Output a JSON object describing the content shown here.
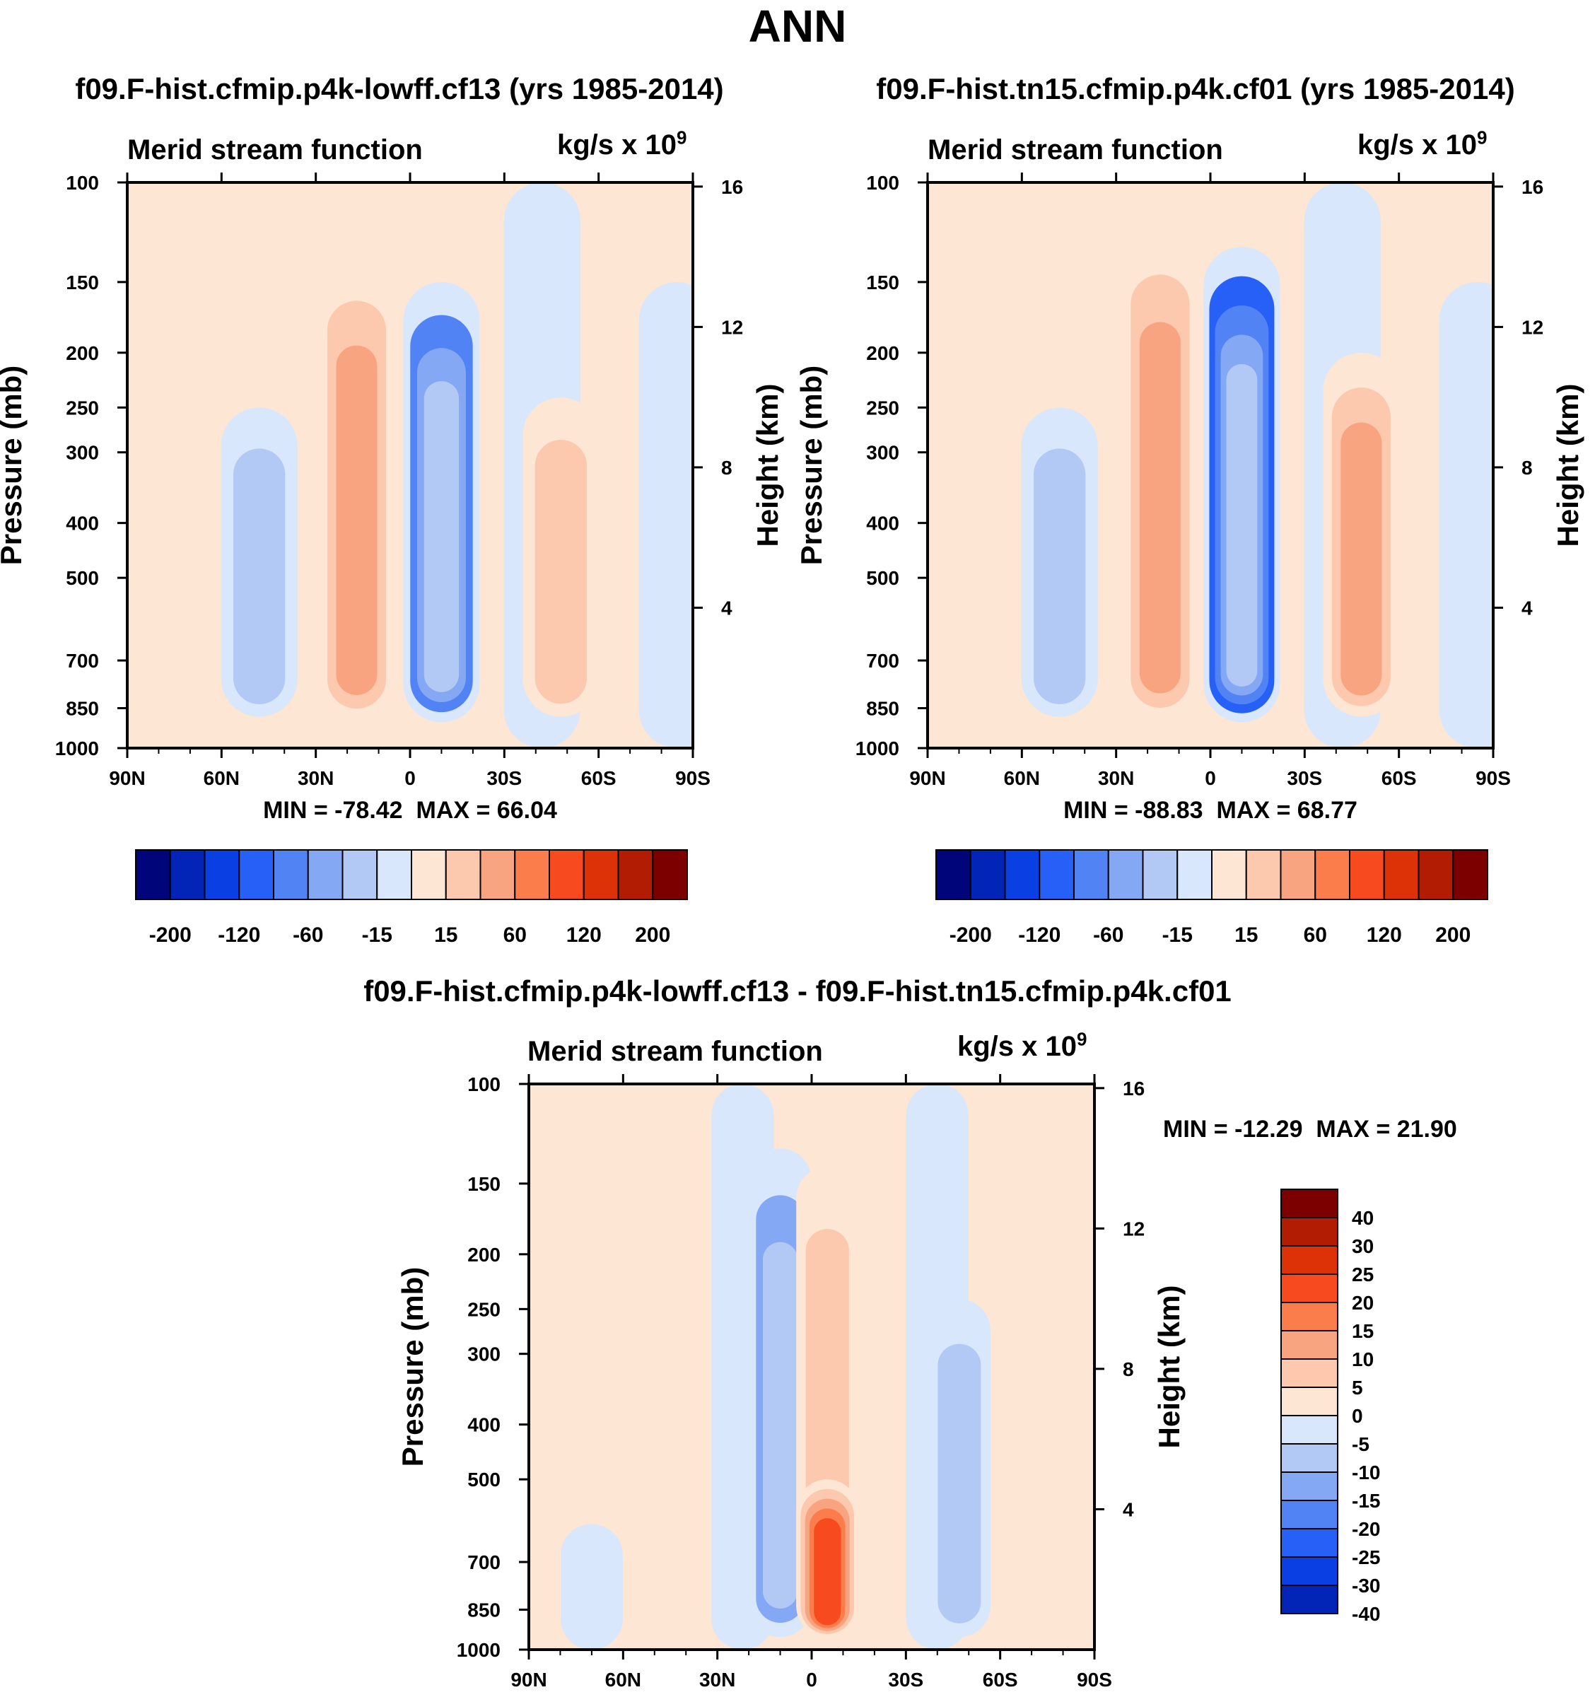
{
  "main_title": "ANN",
  "panels": [
    {
      "title": "f09.F-hist.cfmip.p4k-lowff.cf13 (yrs 1985-2014)",
      "subtitle": "Merid stream function",
      "units": "kg/s x 10",
      "units_exp": "9",
      "min_label": "MIN = -78.42",
      "max_label": "MAX =  66.04"
    },
    {
      "title": "f09.F-hist.tn15.cfmip.p4k.cf01 (yrs 1985-2014)",
      "subtitle": "Merid stream function",
      "units": "kg/s x 10",
      "units_exp": "9",
      "min_label": "MIN = -88.83",
      "max_label": "MAX =  68.77"
    },
    {
      "title": "f09.F-hist.cfmip.p4k-lowff.cf13 - f09.F-hist.tn15.cfmip.p4k.cf01",
      "subtitle": "Merid stream function",
      "units": "kg/s x 10",
      "units_exp": "9",
      "min_label": "MIN = -12.29",
      "max_label": "MAX =  21.90"
    }
  ],
  "chart_data": [
    {
      "type": "heatmap",
      "title": "f09.F-hist.cfmip.p4k-lowff.cf13 (yrs 1985-2014)",
      "ylabel": "Pressure (mb)",
      "ylabel_right": "Height (km)",
      "x_ticks": [
        "90N",
        "60N",
        "30N",
        "0",
        "30S",
        "60S",
        "90S"
      ],
      "x_values": [
        90,
        60,
        30,
        0,
        -30,
        -60,
        -90
      ],
      "y_ticks": [
        100,
        150,
        200,
        250,
        300,
        400,
        500,
        700,
        850,
        1000
      ],
      "y_scale": "log",
      "ylim": [
        1000,
        100
      ],
      "right_ticks_km": [
        4,
        8,
        12,
        16
      ],
      "min": -78.42,
      "max": 66.04,
      "features": [
        {
          "lat": 82,
          "p_top": 100,
          "p_bottom": 1000,
          "value": 0
        },
        {
          "lat": 48,
          "p_top": 250,
          "p_bottom": 880,
          "value": -20
        },
        {
          "lat": -42,
          "p_top": 100,
          "p_bottom": 1000,
          "value": -5
        },
        {
          "lat": 17,
          "p_top": 135,
          "p_bottom": 900,
          "value": 45
        },
        {
          "lat": -10,
          "p_top": 150,
          "p_bottom": 900,
          "value": -70
        },
        {
          "lat": -48,
          "p_top": 240,
          "p_bottom": 880,
          "value": 30
        },
        {
          "lat": -85,
          "p_top": 150,
          "p_bottom": 1000,
          "value": -3
        }
      ]
    },
    {
      "type": "heatmap",
      "title": "f09.F-hist.tn15.cfmip.p4k.cf01 (yrs 1985-2014)",
      "ylabel": "Pressure (mb)",
      "ylabel_right": "Height (km)",
      "x_ticks": [
        "90N",
        "60N",
        "30N",
        "0",
        "30S",
        "60S",
        "90S"
      ],
      "x_values": [
        90,
        60,
        30,
        0,
        -30,
        -60,
        -90
      ],
      "y_ticks": [
        100,
        150,
        200,
        250,
        300,
        400,
        500,
        700,
        850,
        1000
      ],
      "y_scale": "log",
      "ylim": [
        1000,
        100
      ],
      "right_ticks_km": [
        4,
        8,
        12,
        16
      ],
      "min": -88.83,
      "max": 68.77,
      "features": [
        {
          "lat": 82,
          "p_top": 100,
          "p_bottom": 1000,
          "value": 0
        },
        {
          "lat": 48,
          "p_top": 250,
          "p_bottom": 880,
          "value": -20
        },
        {
          "lat": -42,
          "p_top": 100,
          "p_bottom": 1000,
          "value": -5
        },
        {
          "lat": 16,
          "p_top": 120,
          "p_bottom": 900,
          "value": 48
        },
        {
          "lat": -10,
          "p_top": 130,
          "p_bottom": 900,
          "value": -80
        },
        {
          "lat": -48,
          "p_top": 200,
          "p_bottom": 880,
          "value": 40
        },
        {
          "lat": -85,
          "p_top": 150,
          "p_bottom": 1000,
          "value": -3
        }
      ]
    },
    {
      "type": "heatmap",
      "title": "f09.F-hist.cfmip.p4k-lowff.cf13 - f09.F-hist.tn15.cfmip.p4k.cf01",
      "ylabel": "Pressure (mb)",
      "ylabel_right": "Height (km)",
      "x_ticks": [
        "90N",
        "60N",
        "30N",
        "0",
        "30S",
        "60S",
        "90S"
      ],
      "x_values": [
        90,
        60,
        30,
        0,
        -30,
        -60,
        -90
      ],
      "y_ticks": [
        100,
        150,
        200,
        250,
        300,
        400,
        500,
        700,
        850,
        1000
      ],
      "y_scale": "log",
      "ylim": [
        1000,
        100
      ],
      "right_ticks_km": [
        4,
        8,
        12,
        16
      ],
      "min": -12.29,
      "max": 21.9,
      "features": [
        {
          "lat": 22,
          "p_top": 100,
          "p_bottom": 1000,
          "value": -3
        },
        {
          "lat": -40,
          "p_top": 100,
          "p_bottom": 1000,
          "value": -3
        },
        {
          "lat": 70,
          "p_top": 600,
          "p_bottom": 1000,
          "value": -2
        },
        {
          "lat": 10,
          "p_top": 130,
          "p_bottom": 950,
          "value": -10
        },
        {
          "lat": -5,
          "p_top": 140,
          "p_bottom": 950,
          "value": 8
        },
        {
          "lat": -5,
          "p_top": 500,
          "p_bottom": 950,
          "value": 20
        },
        {
          "lat": -47,
          "p_top": 240,
          "p_bottom": 950,
          "value": -8
        }
      ]
    }
  ],
  "colorbars": [
    {
      "orientation": "horizontal",
      "levels": [
        -200,
        -160,
        -120,
        -80,
        -60,
        -40,
        -15,
        0,
        15,
        40,
        60,
        80,
        120,
        160,
        200
      ],
      "tick_labels": [
        "-200",
        "-120",
        "-60",
        "-15",
        "15",
        "60",
        "120",
        "200"
      ]
    },
    {
      "orientation": "horizontal",
      "levels": [
        -200,
        -160,
        -120,
        -80,
        -60,
        -40,
        -15,
        0,
        15,
        40,
        60,
        80,
        120,
        160,
        200
      ],
      "tick_labels": [
        "-200",
        "-120",
        "-60",
        "-15",
        "15",
        "60",
        "120",
        "200"
      ]
    },
    {
      "orientation": "vertical",
      "levels": [
        40,
        30,
        25,
        20,
        15,
        10,
        5,
        0,
        -5,
        -10,
        -15,
        -20,
        -25,
        -30,
        -40
      ],
      "tick_labels": [
        "40",
        "30",
        "25",
        "20",
        "15",
        "10",
        "5",
        "0",
        "-5",
        "-10",
        "-15",
        "-20",
        "-25",
        "-30",
        "-40"
      ]
    }
  ],
  "palette": [
    "#00057a",
    "#0224b7",
    "#0a3fe4",
    "#2660f7",
    "#5283f5",
    "#84a8f4",
    "#b2c9f6",
    "#d8e7fb",
    "#fde6d3",
    "#fcc8ae",
    "#f9a481",
    "#fb7d4c",
    "#f74a1e",
    "#dd3208",
    "#b21c03",
    "#7d0000"
  ]
}
